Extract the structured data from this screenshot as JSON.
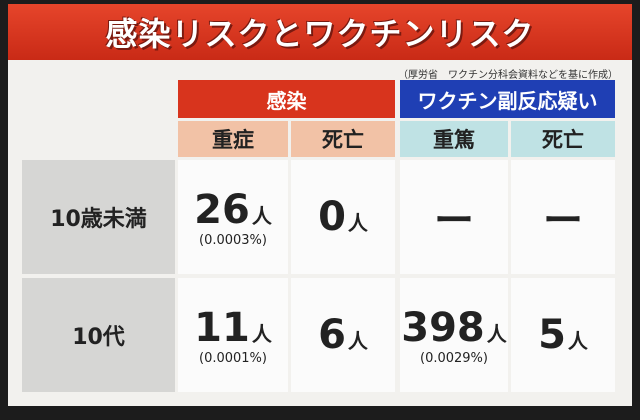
{
  "title": "感染リスクとワクチンリスク",
  "source": "（厚労省　ワクチン分科会資料などを基に作成）",
  "groups": [
    "感染",
    "ワクチン副反応疑い"
  ],
  "columns": [
    "重症",
    "死亡",
    "重篤",
    "死亡"
  ],
  "rows": [
    {
      "label": "10歳未満",
      "cells": [
        {
          "value": "26",
          "unit": "人",
          "rate": "(0.0003%)"
        },
        {
          "value": "0",
          "unit": "人"
        },
        {
          "value": "ー"
        },
        {
          "value": "ー"
        }
      ]
    },
    {
      "label": "10代",
      "cells": [
        {
          "value": "11",
          "unit": "人",
          "rate": "(0.0001%)"
        },
        {
          "value": "6",
          "unit": "人"
        },
        {
          "value": "398",
          "unit": "人",
          "rate": "(0.0029%)"
        },
        {
          "value": "5",
          "unit": "人"
        }
      ]
    }
  ]
}
